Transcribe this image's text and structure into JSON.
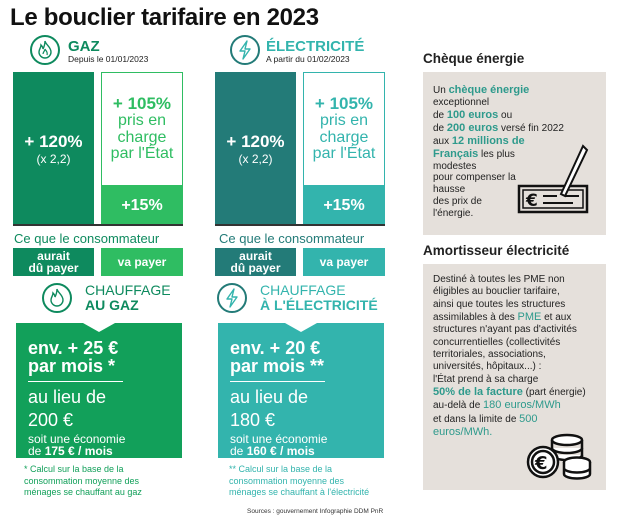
{
  "title": "Le bouclier tarifaire en 2023",
  "colors": {
    "gaz_dark": "#0e8a5e",
    "gaz_light": "#2fbd62",
    "elec_dark": "#237b78",
    "elec_light": "#33b4ad",
    "beige": "#e5e0db",
    "teal_text": "#2e9a8c"
  },
  "gaz": {
    "icon": "flame-icon",
    "label": "GAZ",
    "date": "Depuis le 01/01/2023",
    "would_pct": "+ 120%",
    "would_mult": "(x 2,2)",
    "state_pct": "+ 105%",
    "state_text": [
      "pris en",
      "charge",
      "par l'État"
    ],
    "pay_pct": "+15%",
    "consumer": "Ce que le consommateur",
    "label_would": [
      "aurait",
      "dû payer"
    ],
    "label_pay": "va payer",
    "heating_line1": "CHAUFFAGE",
    "heating_line2": "AU GAZ",
    "card_l1": "env. + 25 €",
    "card_l2": "par mois *",
    "card_l3": "au lieu de",
    "card_l4": "200 €",
    "card_l5": "soit une économie",
    "card_l6_pre": "de ",
    "card_l6_bold": "175 € / mois",
    "footnote": [
      "* Calcul sur la base de la",
      "consommation moyenne des",
      "ménages se chauffant au gaz"
    ]
  },
  "elec": {
    "icon": "lightning-icon",
    "label": "ÉLECTRICITÉ",
    "date": "A partir du 01/02/2023",
    "would_pct": "+ 120%",
    "would_mult": "(x 2,2)",
    "state_pct": "+ 105%",
    "state_text": [
      "pris en",
      "charge",
      "par l'État"
    ],
    "pay_pct": "+15%",
    "consumer": "Ce que le consommateur",
    "label_would": [
      "aurait",
      "dû payer"
    ],
    "label_pay": "va payer",
    "heating_line1": "CHAUFFAGE",
    "heating_line2": "À L'ÉLECTRICITÉ",
    "card_l1": "env. + 20 €",
    "card_l2": "par mois **",
    "card_l3": "au lieu de",
    "card_l4": "180 €",
    "card_l5": "soit une économie",
    "card_l6_pre": "de ",
    "card_l6_bold": "160 € / mois",
    "footnote": [
      "** Calcul sur la base de la",
      "consommation moyenne des",
      "ménages se chauffant à l'électricité"
    ]
  },
  "sources": "Sources : gouvernement Infographie DDM PnR",
  "cheque": {
    "heading": "Chèque énergie",
    "icon": "cheque-pen-icon",
    "parts": [
      "Un ",
      "chèque énergie",
      "exceptionnel",
      "de ",
      "100 euros",
      " ou",
      "de ",
      "200 euros",
      " versé fin 2022",
      "aux ",
      "12 millions de",
      "Français",
      " les plus",
      "modestes",
      "pour compenser la",
      "hausse",
      "des prix de",
      "l'énergie."
    ]
  },
  "amortisseur": {
    "heading": "Amortisseur électricité",
    "icon": "euro-coins-icon",
    "lines": [
      "Destiné à toutes les PME non",
      "éligibles au bouclier tarifaire,",
      "ainsi que toutes les structures"
    ],
    "l4a": "assimilables à des ",
    "l4b": "PME",
    "l4c": " et aux",
    "lines2": [
      "structures n'ayant pas d'activités",
      "concurrentielles (collectivités",
      "territoriales, associations,",
      "universités, hôpitaux...) :",
      "l'État prend à sa charge"
    ],
    "l10a": "50% de la facture",
    "l10b": " (part énergie)",
    "l11a": "au-delà de ",
    "l11b": "180 euros/MWh",
    "l12a": "et dans la limite de ",
    "l12b": "500",
    "l13": "euros/MWh."
  }
}
